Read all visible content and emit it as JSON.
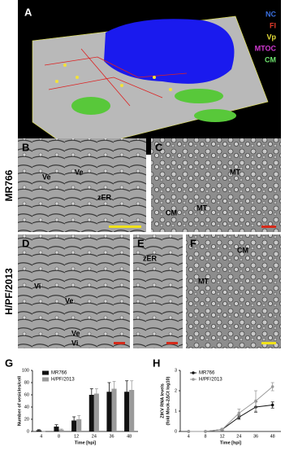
{
  "figure": {
    "panel_a": {
      "label": "A",
      "legend": [
        "NC",
        "FI",
        "Vp",
        "MTOC",
        "CM"
      ],
      "legend_colors": [
        "#3a6fe0",
        "#e03a2a",
        "#e8e03a",
        "#d23ad2",
        "#6ee36e"
      ]
    },
    "row_labels": [
      "MR766",
      "H/PF/2013"
    ],
    "panels": [
      {
        "label": "B",
        "annotations": [
          "Ve",
          "Ve",
          "zER"
        ],
        "scale_color": "#f0e21a"
      },
      {
        "label": "C",
        "annotations": [
          "MT",
          "MT",
          "CM"
        ],
        "scale_color": "#d42a1a"
      },
      {
        "label": "D",
        "annotations": [
          "Vi",
          "Ve",
          "Ve",
          "Vi"
        ],
        "scale_color": "#d42a1a"
      },
      {
        "label": "E",
        "annotations": [
          "zER"
        ],
        "scale_color": "#d42a1a"
      },
      {
        "label": "F",
        "annotations": [
          "CM",
          "MT"
        ],
        "scale_color": "#f0e21a"
      }
    ]
  },
  "chart_data": [
    {
      "type": "bar",
      "label": "G",
      "y_label": "Number of vesicles/cell",
      "x_label": "Time [hpi]",
      "categories": [
        "4",
        "8",
        "12",
        "24",
        "36",
        "48"
      ],
      "series": [
        {
          "name": "MR766",
          "color": "#111111",
          "values": [
            2,
            8,
            18,
            60,
            65,
            65
          ],
          "errors": [
            1,
            3,
            6,
            10,
            15,
            18
          ]
        },
        {
          "name": "H/PF/2013",
          "color": "#9a9a9a",
          "values": [
            0,
            3,
            20,
            62,
            70,
            68
          ],
          "errors": [
            0,
            1,
            6,
            8,
            12,
            15
          ]
        }
      ],
      "ylim": [
        0,
        100
      ],
      "yticks": [
        0,
        20,
        40,
        60,
        80,
        100
      ],
      "legend": "upper-left"
    },
    {
      "type": "line",
      "label": "H",
      "y_label": "ZIKV RNA levels",
      "y_label_2": "(fold Mock-2ΔCt log10)",
      "x_label": "Time [hpi]",
      "categories": [
        "4",
        "8",
        "12",
        "24",
        "36",
        "48"
      ],
      "series": [
        {
          "name": "MR766",
          "color": "#111111",
          "values": [
            0,
            0,
            0.1,
            0.7,
            1.2,
            1.3
          ],
          "errors": [
            0,
            0,
            0.05,
            0.1,
            0.25,
            0.15
          ]
        },
        {
          "name": "H/PF/2013",
          "color": "#9a9a9a",
          "values": [
            0,
            0,
            0.1,
            0.9,
            1.5,
            2.2
          ],
          "errors": [
            0,
            0,
            0.05,
            0.2,
            0.5,
            0.2
          ]
        }
      ],
      "ylim": [
        0,
        3
      ],
      "yticks": [
        0,
        1,
        2,
        3
      ],
      "legend": "upper-left"
    }
  ]
}
